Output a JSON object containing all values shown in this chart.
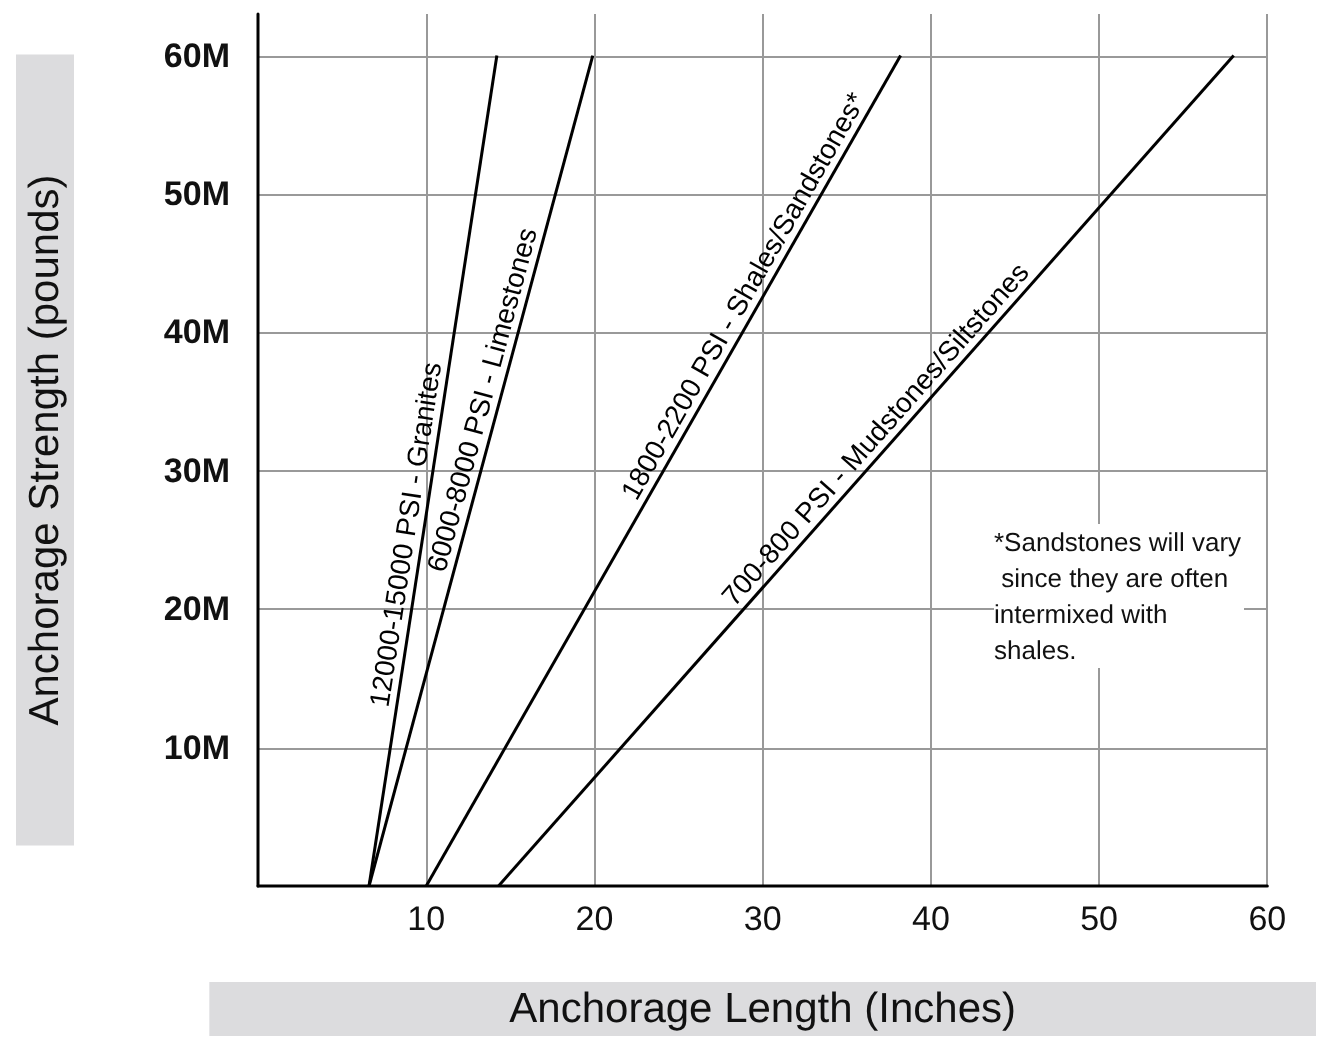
{
  "chart_data": {
    "type": "line",
    "xlabel": "Anchorage Length (Inches)",
    "ylabel": "Anchorage Strength (pounds)",
    "xlim": [
      0,
      60
    ],
    "xticks": [
      10,
      20,
      30,
      40,
      50,
      60
    ],
    "ylim": [
      0,
      63000000
    ],
    "yticks": [
      {
        "value": 10000000,
        "label": "10M"
      },
      {
        "value": 20000000,
        "label": "20M"
      },
      {
        "value": 30000000,
        "label": "30M"
      },
      {
        "value": 40000000,
        "label": "40M"
      },
      {
        "value": 50000000,
        "label": "50M"
      },
      {
        "value": 60000000,
        "label": "60M"
      }
    ],
    "grid": true,
    "legend": false,
    "marker": "none",
    "line_style": "solid",
    "series": [
      {
        "name": "12000-15000 PSI - Granites",
        "color": "#000000",
        "x": [
          6.6,
          14.2
        ],
        "values": [
          0,
          60000000
        ]
      },
      {
        "name": "6000-8000 PSI - Limestones",
        "color": "#000000",
        "x": [
          6.6,
          19.9
        ],
        "values": [
          0,
          60000000
        ]
      },
      {
        "name": "1800-2200 PSI - Shales/Sandstones*",
        "color": "#000000",
        "x": [
          10,
          38.2
        ],
        "values": [
          0,
          60000000
        ]
      },
      {
        "name": "700-800 PSI - Mudstones/Siltstones",
        "color": "#000000",
        "x": [
          14.3,
          58
        ],
        "values": [
          0,
          60000000
        ]
      }
    ],
    "annotations": [
      "*Sandstones will vary since they are often intermixed with shales."
    ]
  }
}
